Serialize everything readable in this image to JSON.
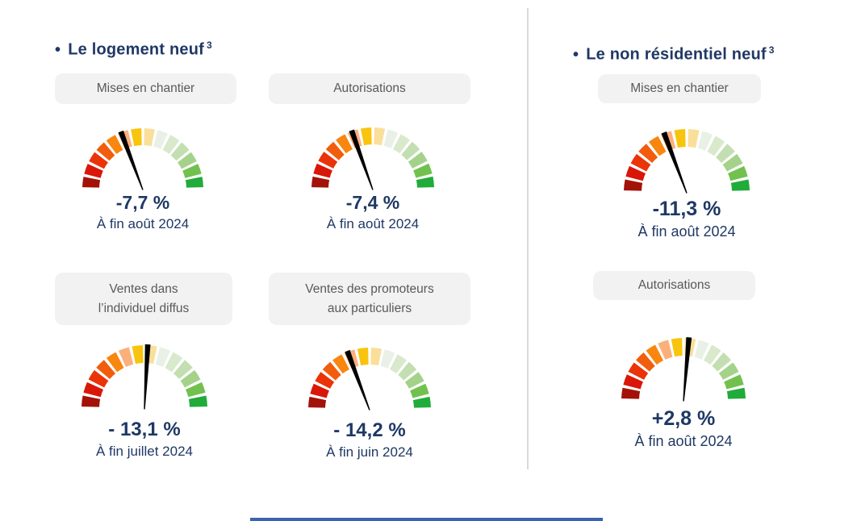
{
  "page": {
    "background": "#ffffff",
    "divider_color": "#d9d9d9",
    "footer_line_color": "#3a64ad"
  },
  "palette": {
    "title_color": "#1f3864",
    "value_color": "#1f3864",
    "pill_text_color": "#595959",
    "pill_bg_color": "#f2f2f2",
    "needle_color": "#000000",
    "segment_colors": [
      "#a31208",
      "#d91708",
      "#ea3408",
      "#f25c0d",
      "#f8860f",
      "#fbb07c",
      "#f8c40e",
      "#fadf9a",
      "#e9f1e6",
      "#d8e9cc",
      "#c3dfb2",
      "#a4d28a",
      "#72c14f",
      "#21ab3a"
    ]
  },
  "sections": [
    {
      "id": "logement-neuf",
      "bullet": "•",
      "title": "Le logement neuf",
      "superscript": "3",
      "gauges": [
        {
          "label_lines": [
            "Mises en chantier"
          ],
          "value": "-7,7 %",
          "period": "À fin août 2024",
          "needle_deg": -21
        },
        {
          "label_lines": [
            "Autorisations"
          ],
          "value": "-7,4 %",
          "period": "À fin août 2024",
          "needle_deg": -20
        },
        {
          "label_lines": [
            "Ventes dans",
            "l’individuel diffus"
          ],
          "value": "- 13,1 %",
          "period": "À fin juillet 2024",
          "needle_deg": 3
        },
        {
          "label_lines": [
            "Ventes des promoteurs",
            "aux particuliers"
          ],
          "value": "- 14,2 %",
          "period": "À fin juin 2024",
          "needle_deg": -21
        }
      ]
    },
    {
      "id": "non-residentiel-neuf",
      "bullet": "•",
      "title": "Le non résidentiel neuf",
      "superscript": "3",
      "gauges": [
        {
          "label_lines": [
            "Mises en chantier"
          ],
          "value": "-11,3 %",
          "period": "À fin août 2024",
          "needle_deg": -21
        },
        {
          "label_lines": [
            "Autorisations"
          ],
          "value": "+2,8 %",
          "period": "À fin août 2024",
          "needle_deg": 5
        }
      ]
    }
  ],
  "chart_data": [
    {
      "type": "gauge",
      "title": "Le logement neuf",
      "scale": "semicircular red-to-green, 14 segments, needle indicates trend position",
      "gauges": [
        {
          "label": "Mises en chantier",
          "value_pct": -7.7,
          "as_of": "À fin août 2024"
        },
        {
          "label": "Autorisations",
          "value_pct": -7.4,
          "as_of": "À fin août 2024"
        },
        {
          "label": "Ventes dans l’individuel diffus",
          "value_pct": -13.1,
          "as_of": "À fin juillet 2024"
        },
        {
          "label": "Ventes des promoteurs aux particuliers",
          "value_pct": -14.2,
          "as_of": "À fin juin 2024"
        }
      ]
    },
    {
      "type": "gauge",
      "title": "Le non résidentiel neuf",
      "scale": "semicircular red-to-green, 14 segments, needle indicates trend position",
      "gauges": [
        {
          "label": "Mises en chantier",
          "value_pct": -11.3,
          "as_of": "À fin août 2024"
        },
        {
          "label": "Autorisations",
          "value_pct": 2.8,
          "as_of": "À fin août 2024"
        }
      ]
    }
  ]
}
